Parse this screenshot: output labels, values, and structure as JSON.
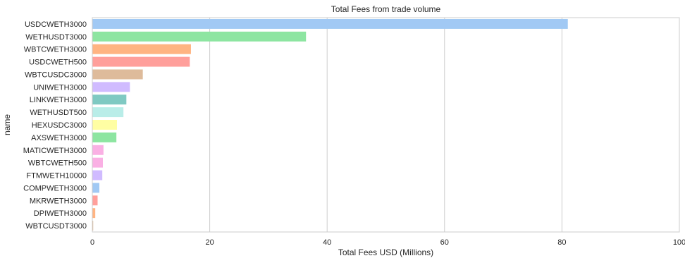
{
  "chart_data": {
    "type": "bar",
    "orientation": "horizontal",
    "title": "Total Fees from trade volume",
    "xlabel": "Total Fees USD (Millions)",
    "ylabel": "name",
    "xlim": [
      0,
      100
    ],
    "xticks": [
      0,
      20,
      40,
      60,
      80,
      100
    ],
    "grid": "vertical",
    "categories": [
      "USDCWETH3000",
      "WETHUSDT3000",
      "WBTCWETH3000",
      "USDCWETH500",
      "WBTCUSDC3000",
      "UNIWETH3000",
      "LINKWETH3000",
      "WETHUSDT500",
      "HEXUSDC3000",
      "AXSWETH3000",
      "MATICWETH3000",
      "WBTCWETH500",
      "FTMWETH10000",
      "COMPWETH3000",
      "MKRWETH3000",
      "DPIWETH3000",
      "WBTCUSDT3000"
    ],
    "values": [
      81.0,
      36.4,
      16.8,
      16.6,
      8.6,
      6.4,
      5.8,
      5.3,
      4.2,
      4.1,
      1.9,
      1.8,
      1.7,
      1.2,
      0.9,
      0.5,
      0.15
    ],
    "colors": [
      "#a1c9f4",
      "#8de5a1",
      "#ffb482",
      "#ff9f9b",
      "#debb9b",
      "#d0bbff",
      "#7fc9c2",
      "#b9ede8",
      "#fffea3",
      "#8de5a1",
      "#fab0e4",
      "#fab0e4",
      "#d0bbff",
      "#a1c9f4",
      "#ff9f9b",
      "#ffb482",
      "#debb9b"
    ]
  }
}
